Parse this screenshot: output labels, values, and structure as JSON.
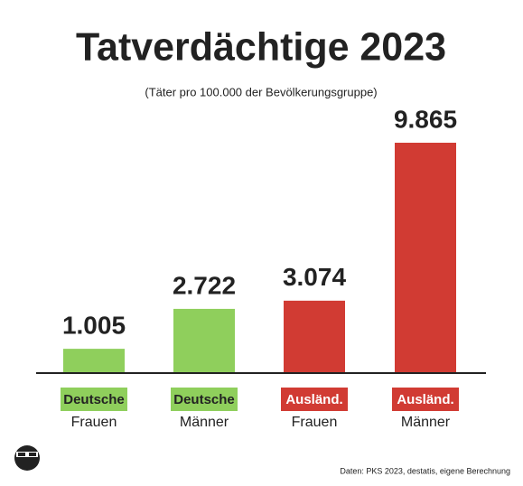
{
  "chart_data": {
    "type": "bar",
    "title": "Tatverdächtige 2023",
    "subtitle": "(Täter pro 100.000 der Bevölkerungsgruppe)",
    "groups": [
      "Deutsche",
      "Deutsche",
      "Ausländ.",
      "Ausländ."
    ],
    "categories": [
      "Frauen",
      "Männer",
      "Frauen",
      "Männer"
    ],
    "values": [
      1005,
      2722,
      3074,
      9865
    ],
    "value_labels": [
      "1.005",
      "2.722",
      "3.074",
      "9.865"
    ],
    "colors": [
      "#8fcf5c",
      "#8fcf5c",
      "#d13b33",
      "#d13b33"
    ],
    "source": "Daten: PKS 2023, destatis, eigene Berechnung"
  }
}
